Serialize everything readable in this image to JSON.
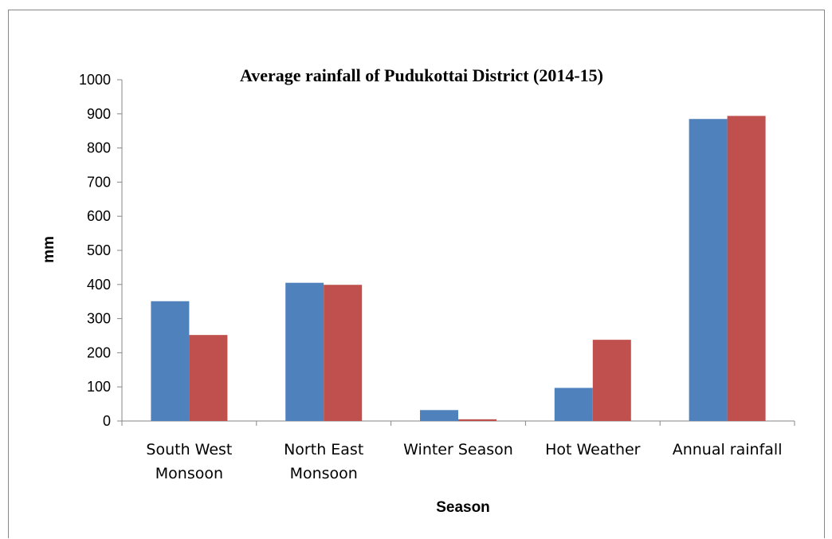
{
  "chart_data": {
    "type": "bar",
    "title": "Average rainfall of Pudukottai District (2014-15)",
    "xlabel": "Season",
    "ylabel": "mm",
    "ylim": [
      0,
      1000
    ],
    "yticks": [
      "0",
      "100",
      "200",
      "300",
      "400",
      "500",
      "600",
      "700",
      "800",
      "900",
      "1000"
    ],
    "categories": [
      [
        "South West",
        "Monsoon"
      ],
      [
        "North East",
        "Monsoon"
      ],
      [
        "Winter Season"
      ],
      [
        "Hot Weather"
      ],
      [
        "Annual rainfall"
      ]
    ],
    "series": [
      {
        "values": [
          351,
          405,
          32,
          97,
          885
        ],
        "color": "#4f81bd"
      },
      {
        "values": [
          252,
          399,
          5,
          238,
          894
        ],
        "color": "#c0504d"
      }
    ],
    "grid": false,
    "legend": "none"
  }
}
